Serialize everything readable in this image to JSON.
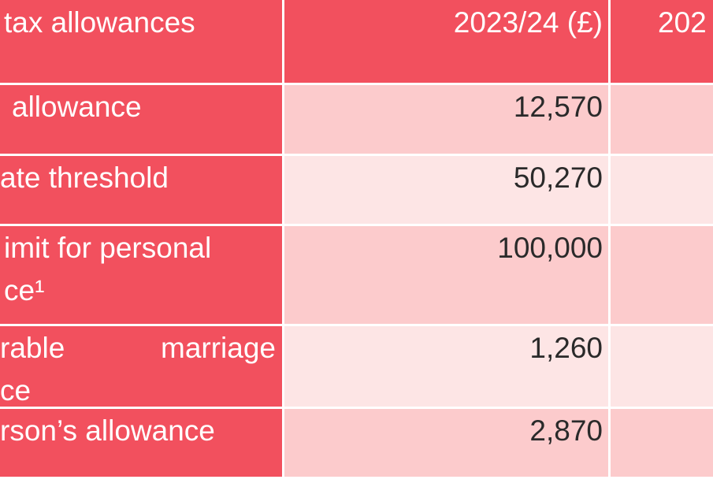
{
  "table": {
    "header": [
      "tax allowances",
      "2023/24 (£)",
      "202"
    ],
    "rows": [
      [
        [
          "allowance"
        ],
        "12,570"
      ],
      [
        [
          "ate threshold"
        ],
        "50,270"
      ],
      [
        [
          "imit for personal",
          "ce¹"
        ],
        "100,000"
      ],
      [
        [
          "rable marriage",
          "ce"
        ],
        "1,260"
      ],
      [
        [
          "rson’s allowance"
        ],
        "2,870"
      ]
    ]
  }
}
